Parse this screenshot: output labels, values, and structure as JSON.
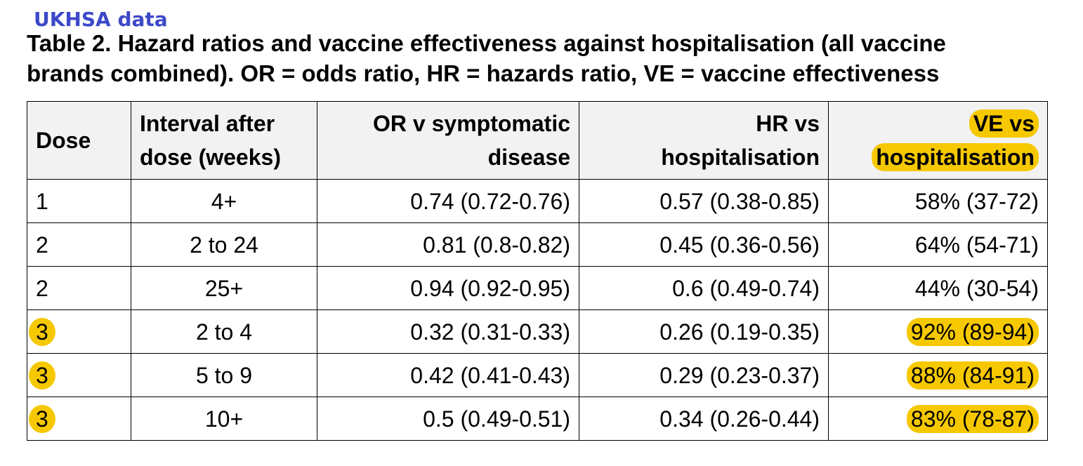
{
  "source_label": "UKHSA data",
  "caption": {
    "line1": "Table 2. Hazard ratios and vaccine effectiveness against hospitalisation (all vaccine",
    "line2": "brands combined). OR = odds ratio, HR = hazards ratio, VE = vaccine effectiveness"
  },
  "highlight_color": "#f6c800",
  "label_color": "#3d48c8",
  "table": {
    "headers": {
      "dose": "Dose",
      "interval_line1": "Interval after",
      "interval_line2": "dose (weeks)",
      "or_line1": "OR v symptomatic",
      "or_line2": "disease",
      "hr_line1": "HR vs",
      "hr_line2": "hospitalisation",
      "ve_line1": "VE vs",
      "ve_line2": "hospitalisation"
    },
    "rows": [
      {
        "dose": "1",
        "interval": "4+",
        "or": "0.74 (0.72-0.76)",
        "hr": "0.57 (0.38-0.85)",
        "ve": "58% (37-72)"
      },
      {
        "dose": "2",
        "interval": "2 to 24",
        "or": "0.81 (0.8-0.82)",
        "hr": "0.45 (0.36-0.56)",
        "ve": "64% (54-71)"
      },
      {
        "dose": "2",
        "interval": "25+",
        "or": "0.94 (0.92-0.95)",
        "hr": "0.6 (0.49-0.74)",
        "ve": "44% (30-54)"
      },
      {
        "dose": "3",
        "interval": "2 to 4",
        "or": "0.32 (0.31-0.33)",
        "hr": "0.26 (0.19-0.35)",
        "ve": "92% (89-94)"
      },
      {
        "dose": "3",
        "interval": "5 to 9",
        "or": "0.42 (0.41-0.43)",
        "hr": "0.29 (0.23-0.37)",
        "ve": "88% (84-91)"
      },
      {
        "dose": "3",
        "interval": "10+",
        "or": "0.5 (0.49-0.51)",
        "hr": "0.34 (0.26-0.44)",
        "ve": "83% (78-87)"
      }
    ]
  }
}
